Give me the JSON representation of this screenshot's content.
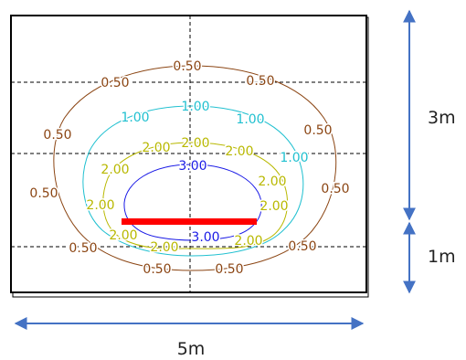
{
  "diagram": {
    "dimensions": {
      "top_height": "3m",
      "bottom_height": "1m",
      "width": "5m"
    },
    "colors": {
      "c050": "#8B4513",
      "c100": "#20C0D0",
      "c200": "#B8B800",
      "c300": "#1A1AE6",
      "source": "#FF0000",
      "arrow": "#4472C4"
    },
    "contours": [
      {
        "level": "0.50",
        "color_key": "c050"
      },
      {
        "level": "1.00",
        "color_key": "c100"
      },
      {
        "level": "2.00",
        "color_key": "c200"
      },
      {
        "level": "3.00",
        "color_key": "c300"
      }
    ],
    "labels": [
      {
        "text": "0.50",
        "color_key": "c050"
      },
      {
        "text": "0.50",
        "color_key": "c050"
      },
      {
        "text": "0.50",
        "color_key": "c050"
      },
      {
        "text": "0.50",
        "color_key": "c050"
      },
      {
        "text": "0.50",
        "color_key": "c050"
      },
      {
        "text": "0.50",
        "color_key": "c050"
      },
      {
        "text": "0.50",
        "color_key": "c050"
      },
      {
        "text": "0.50",
        "color_key": "c050"
      },
      {
        "text": "0.50",
        "color_key": "c050"
      },
      {
        "text": "0.50",
        "color_key": "c050"
      },
      {
        "text": "0.50",
        "color_key": "c050"
      },
      {
        "text": "1.00",
        "color_key": "c100"
      },
      {
        "text": "1.00",
        "color_key": "c100"
      },
      {
        "text": "1.00",
        "color_key": "c100"
      },
      {
        "text": "1.00",
        "color_key": "c100"
      },
      {
        "text": "2.00",
        "color_key": "c200"
      },
      {
        "text": "2.00",
        "color_key": "c200"
      },
      {
        "text": "2.00",
        "color_key": "c200"
      },
      {
        "text": "2.00",
        "color_key": "c200"
      },
      {
        "text": "2.00",
        "color_key": "c200"
      },
      {
        "text": "2.00",
        "color_key": "c200"
      },
      {
        "text": "2.00",
        "color_key": "c200"
      },
      {
        "text": "2.00",
        "color_key": "c200"
      },
      {
        "text": "2.00",
        "color_key": "c200"
      },
      {
        "text": "2.00",
        "color_key": "c200"
      },
      {
        "text": "2.00",
        "color_key": "c200"
      },
      {
        "text": "3.00",
        "color_key": "c300"
      },
      {
        "text": "3.00",
        "color_key": "c300"
      }
    ]
  }
}
